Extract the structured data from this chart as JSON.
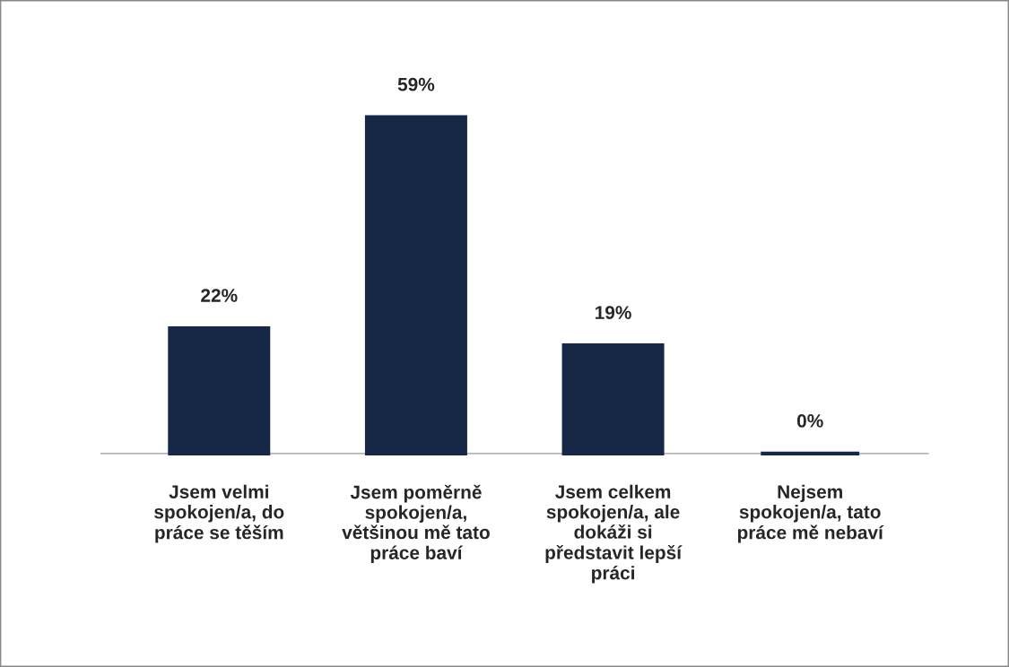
{
  "chart_data": {
    "type": "bar",
    "categories": [
      "Jsem velmi\nspokojen/a, do\npráce se těším",
      "Jsem poměrně\nspokojen/a,\nvětšinou mě tato\npráce baví",
      "Jsem celkem\nspokojen/a, ale\ndokáži si\npředstavit lepší\npráci",
      "Nejsem\nspokojen/a, tato\npráce mě nebaví"
    ],
    "values": [
      22,
      59,
      19,
      0
    ],
    "value_labels": [
      "22%",
      "59%",
      "19%",
      "0%"
    ],
    "color": "#162846",
    "grid": false,
    "legend": false
  }
}
